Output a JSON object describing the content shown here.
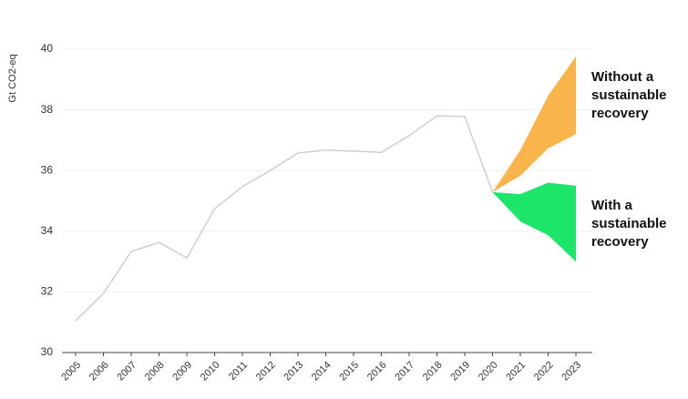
{
  "chart_data": {
    "type": "line",
    "y_label": "Gt CO2-eq",
    "categories": [
      "2005",
      "2006",
      "2007",
      "2008",
      "2009",
      "2010",
      "2011",
      "2012",
      "2013",
      "2014",
      "2015",
      "2016",
      "2017",
      "2018",
      "2019",
      "2020",
      "2021",
      "2022",
      "2023"
    ],
    "series": [
      {
        "color": "#cfcfcf",
        "values": [
          31.05,
          31.95,
          33.33,
          33.63,
          33.12,
          34.74,
          35.47,
          36.0,
          36.58,
          36.67,
          36.64,
          36.6,
          37.15,
          37.8,
          37.78,
          35.29,
          null,
          null,
          null
        ]
      }
    ],
    "bands": [
      {
        "name": "Without a sustainable recovery",
        "color": "#f9b54c",
        "upper": [
          null,
          null,
          null,
          null,
          null,
          null,
          null,
          null,
          null,
          null,
          null,
          null,
          null,
          null,
          null,
          35.29,
          36.67,
          38.47,
          39.76
        ],
        "lower": [
          null,
          null,
          null,
          null,
          null,
          null,
          null,
          null,
          null,
          null,
          null,
          null,
          null,
          null,
          null,
          35.29,
          35.83,
          36.73,
          37.2
        ]
      },
      {
        "name": "With a sustainable recovery",
        "color": "#1de56a",
        "upper": [
          null,
          null,
          null,
          null,
          null,
          null,
          null,
          null,
          null,
          null,
          null,
          null,
          null,
          null,
          null,
          35.29,
          35.22,
          35.6,
          35.5
        ],
        "lower": [
          null,
          null,
          null,
          null,
          null,
          null,
          null,
          null,
          null,
          null,
          null,
          null,
          null,
          null,
          null,
          35.29,
          34.32,
          33.87,
          33.0
        ]
      }
    ],
    "ylim": [
      30,
      40
    ],
    "yticks": [
      30,
      32,
      34,
      36,
      38,
      40
    ],
    "grid": true
  }
}
